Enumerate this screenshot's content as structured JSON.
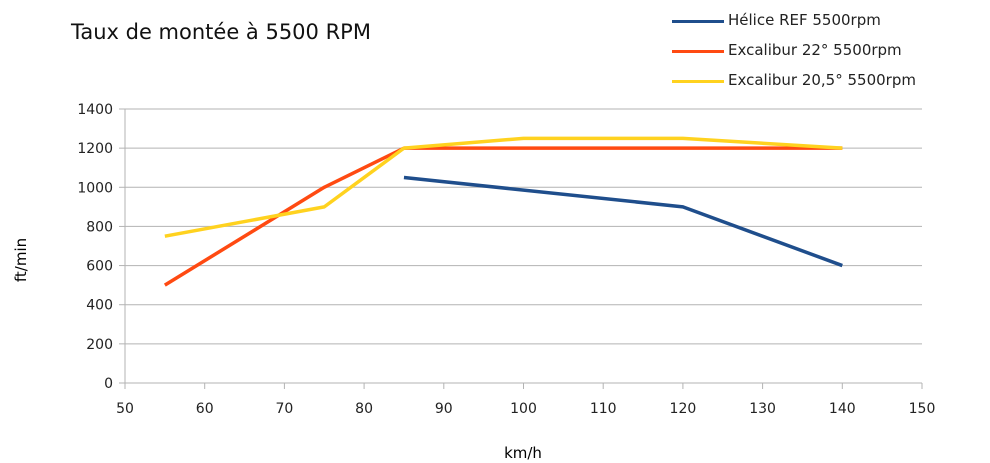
{
  "chart_data": {
    "type": "line",
    "title": "Taux de montée à 5500 RPM",
    "xlabel": "km/h",
    "ylabel": "ft/min",
    "xlim": [
      50,
      150
    ],
    "ylim": [
      0,
      1400
    ],
    "x_ticks": [
      50,
      60,
      70,
      80,
      90,
      100,
      110,
      120,
      130,
      140,
      150
    ],
    "y_ticks": [
      0,
      200,
      400,
      600,
      800,
      1000,
      1200,
      1400
    ],
    "grid": "horizontal",
    "legend_position": "top-right",
    "series": [
      {
        "name": "Hélice REF 5500rpm",
        "color": "#1f4e8c",
        "points": [
          [
            85,
            1050
          ],
          [
            120,
            900
          ],
          [
            140,
            600
          ]
        ]
      },
      {
        "name": "Excalibur 22° 5500rpm",
        "color": "#ff4a12",
        "points": [
          [
            55,
            500
          ],
          [
            75,
            1000
          ],
          [
            85,
            1200
          ],
          [
            140,
            1200
          ]
        ]
      },
      {
        "name": "Excalibur 20,5° 5500rpm",
        "color": "#ffd21f",
        "points": [
          [
            55,
            750
          ],
          [
            75,
            900
          ],
          [
            85,
            1200
          ],
          [
            100,
            1250
          ],
          [
            120,
            1250
          ],
          [
            140,
            1200
          ]
        ]
      }
    ]
  }
}
